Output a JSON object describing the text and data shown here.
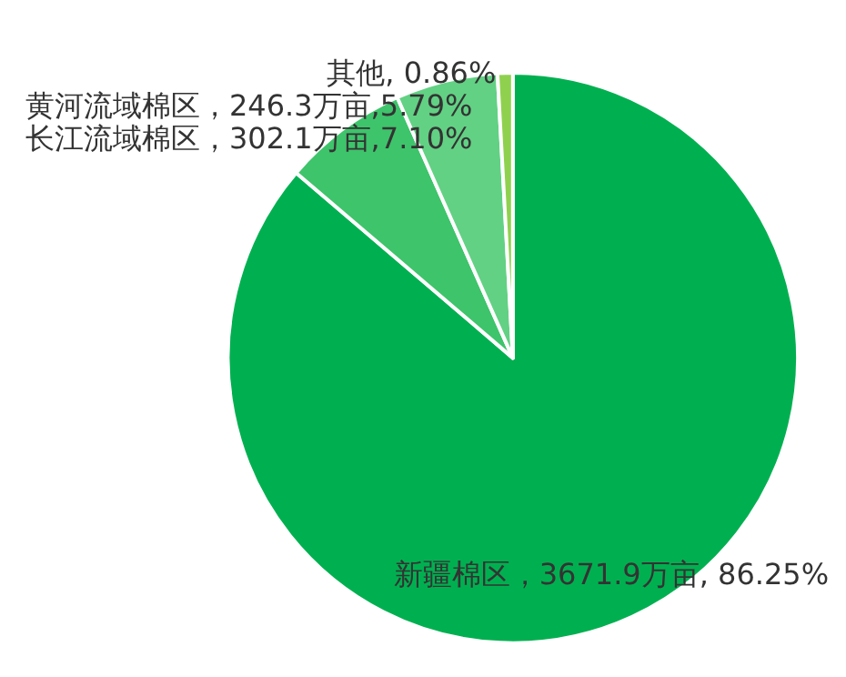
{
  "chart_data": {
    "type": "pie",
    "categories": [
      "新疆棉区",
      "长江流域棉区",
      "黄河流域棉区",
      "其他"
    ],
    "values": [
      86.25,
      7.1,
      5.79,
      0.86
    ],
    "colors": [
      "#00b050",
      "#3ec46b",
      "#62d184",
      "#8fd14f"
    ],
    "value_labels": [
      "，3671.9万亩, 86.25%",
      "，302.1万亩,7.10%",
      "，246.3万亩,5.79%",
      ", 0.86%"
    ],
    "legend": false
  }
}
